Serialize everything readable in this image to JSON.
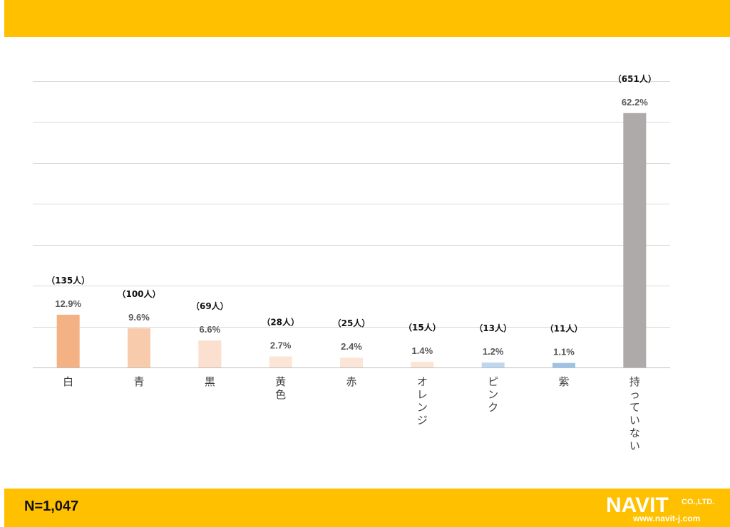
{
  "header": {},
  "footer": {
    "n_label": "N=1,047",
    "logo": {
      "brand_text": "NAVIT",
      "company_suffix": "CO.,LTD.",
      "url": "www.navit-j.com"
    }
  },
  "chart_data": {
    "type": "bar",
    "title": "",
    "xlabel": "",
    "ylabel": "",
    "ylim": [
      0,
      70
    ],
    "grid": true,
    "categories": [
      "白",
      "青",
      "黒",
      "黄色",
      "赤",
      "オレンジ",
      "ピンク",
      "紫",
      "持っていない"
    ],
    "values": [
      12.9,
      9.6,
      6.6,
      2.7,
      2.4,
      1.4,
      1.2,
      1.1,
      62.2
    ],
    "value_labels": [
      "12.9%",
      "9.6%",
      "6.6%",
      "2.7%",
      "2.4%",
      "1.4%",
      "1.2%",
      "1.1%",
      "62.2%"
    ],
    "counts": [
      "（135人）",
      "（100人）",
      "（69人）",
      "（28人）",
      "（25人）",
      "（15人）",
      "（13人）",
      "（11人）",
      "（651人）"
    ],
    "colors": [
      "#F4B183",
      "#F8CBAD",
      "#FBE0CF",
      "#FBE5D6",
      "#FBE5D6",
      "#FBE5D6",
      "#BDD7EE",
      "#9DC3E6",
      "#AEAAAA"
    ]
  }
}
